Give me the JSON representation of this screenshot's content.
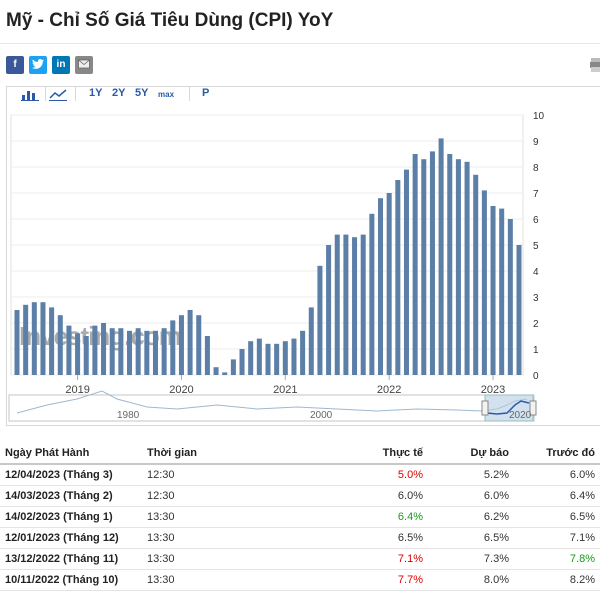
{
  "page": {
    "title": "Mỹ - Chỉ Số Giá Tiêu Dùng (CPI) YoY"
  },
  "share": [
    {
      "name": "facebook",
      "glyph": "f",
      "color": "#3b5998"
    },
    {
      "name": "twitter",
      "glyph": "t",
      "color": "#1da1f2"
    },
    {
      "name": "linkedin",
      "glyph": "in",
      "color": "#0077b5"
    },
    {
      "name": "email",
      "glyph": "",
      "color": "#888888"
    }
  ],
  "toolbar": {
    "range_1y": "1Y",
    "range_2y": "2Y",
    "range_5y": "5Y",
    "range_max": "max",
    "p_label": "P"
  },
  "chart_data": {
    "type": "bar",
    "y_axis_side": "right",
    "ylim": [
      0,
      10
    ],
    "yticks": [
      0,
      1,
      2,
      3,
      4,
      5,
      6,
      7,
      8,
      9,
      10
    ],
    "xticks": [
      "2019",
      "2020",
      "2021",
      "2022",
      "2023"
    ],
    "start_month": "2018-06",
    "values": [
      2.5,
      2.7,
      2.8,
      2.8,
      2.6,
      2.3,
      1.9,
      1.6,
      1.5,
      1.9,
      2.0,
      1.8,
      1.8,
      1.7,
      1.8,
      1.7,
      1.7,
      1.8,
      2.1,
      2.3,
      2.5,
      2.3,
      1.5,
      0.3,
      0.1,
      0.6,
      1.0,
      1.3,
      1.4,
      1.2,
      1.2,
      1.3,
      1.4,
      1.7,
      2.6,
      4.2,
      5.0,
      5.4,
      5.4,
      5.3,
      5.4,
      6.2,
      6.8,
      7.0,
      7.5,
      7.9,
      8.5,
      8.3,
      8.6,
      9.1,
      8.5,
      8.3,
      8.2,
      7.7,
      7.1,
      6.5,
      6.4,
      6.0,
      5.0
    ],
    "bar_color": "#5b7fa7",
    "watermark": "Investing.com",
    "navigator_labels": [
      "1980",
      "2000",
      "2020"
    ]
  },
  "table": {
    "headers": {
      "release": "Ngày Phát Hành",
      "time": "Thời gian",
      "actual": "Thực tế",
      "forecast": "Dự báo",
      "previous": "Trước đó"
    },
    "rows": [
      {
        "date": "12/04/2023 (Tháng 3)",
        "time": "12:30",
        "actual": "5.0%",
        "actual_color": "red",
        "forecast": "5.2%",
        "previous": "6.0%",
        "previous_color": ""
      },
      {
        "date": "14/03/2023 (Tháng 2)",
        "time": "12:30",
        "actual": "6.0%",
        "actual_color": "",
        "forecast": "6.0%",
        "previous": "6.4%",
        "previous_color": ""
      },
      {
        "date": "14/02/2023 (Tháng 1)",
        "time": "13:30",
        "actual": "6.4%",
        "actual_color": "green",
        "forecast": "6.2%",
        "previous": "6.5%",
        "previous_color": ""
      },
      {
        "date": "12/01/2023 (Tháng 12)",
        "time": "13:30",
        "actual": "6.5%",
        "actual_color": "",
        "forecast": "6.5%",
        "previous": "7.1%",
        "previous_color": ""
      },
      {
        "date": "13/12/2022 (Tháng 11)",
        "time": "13:30",
        "actual": "7.1%",
        "actual_color": "red",
        "forecast": "7.3%",
        "previous": "7.8%",
        "previous_color": "green"
      },
      {
        "date": "10/11/2022 (Tháng 10)",
        "time": "13:30",
        "actual": "7.7%",
        "actual_color": "red",
        "forecast": "8.0%",
        "previous": "8.2%",
        "previous_color": ""
      }
    ]
  }
}
